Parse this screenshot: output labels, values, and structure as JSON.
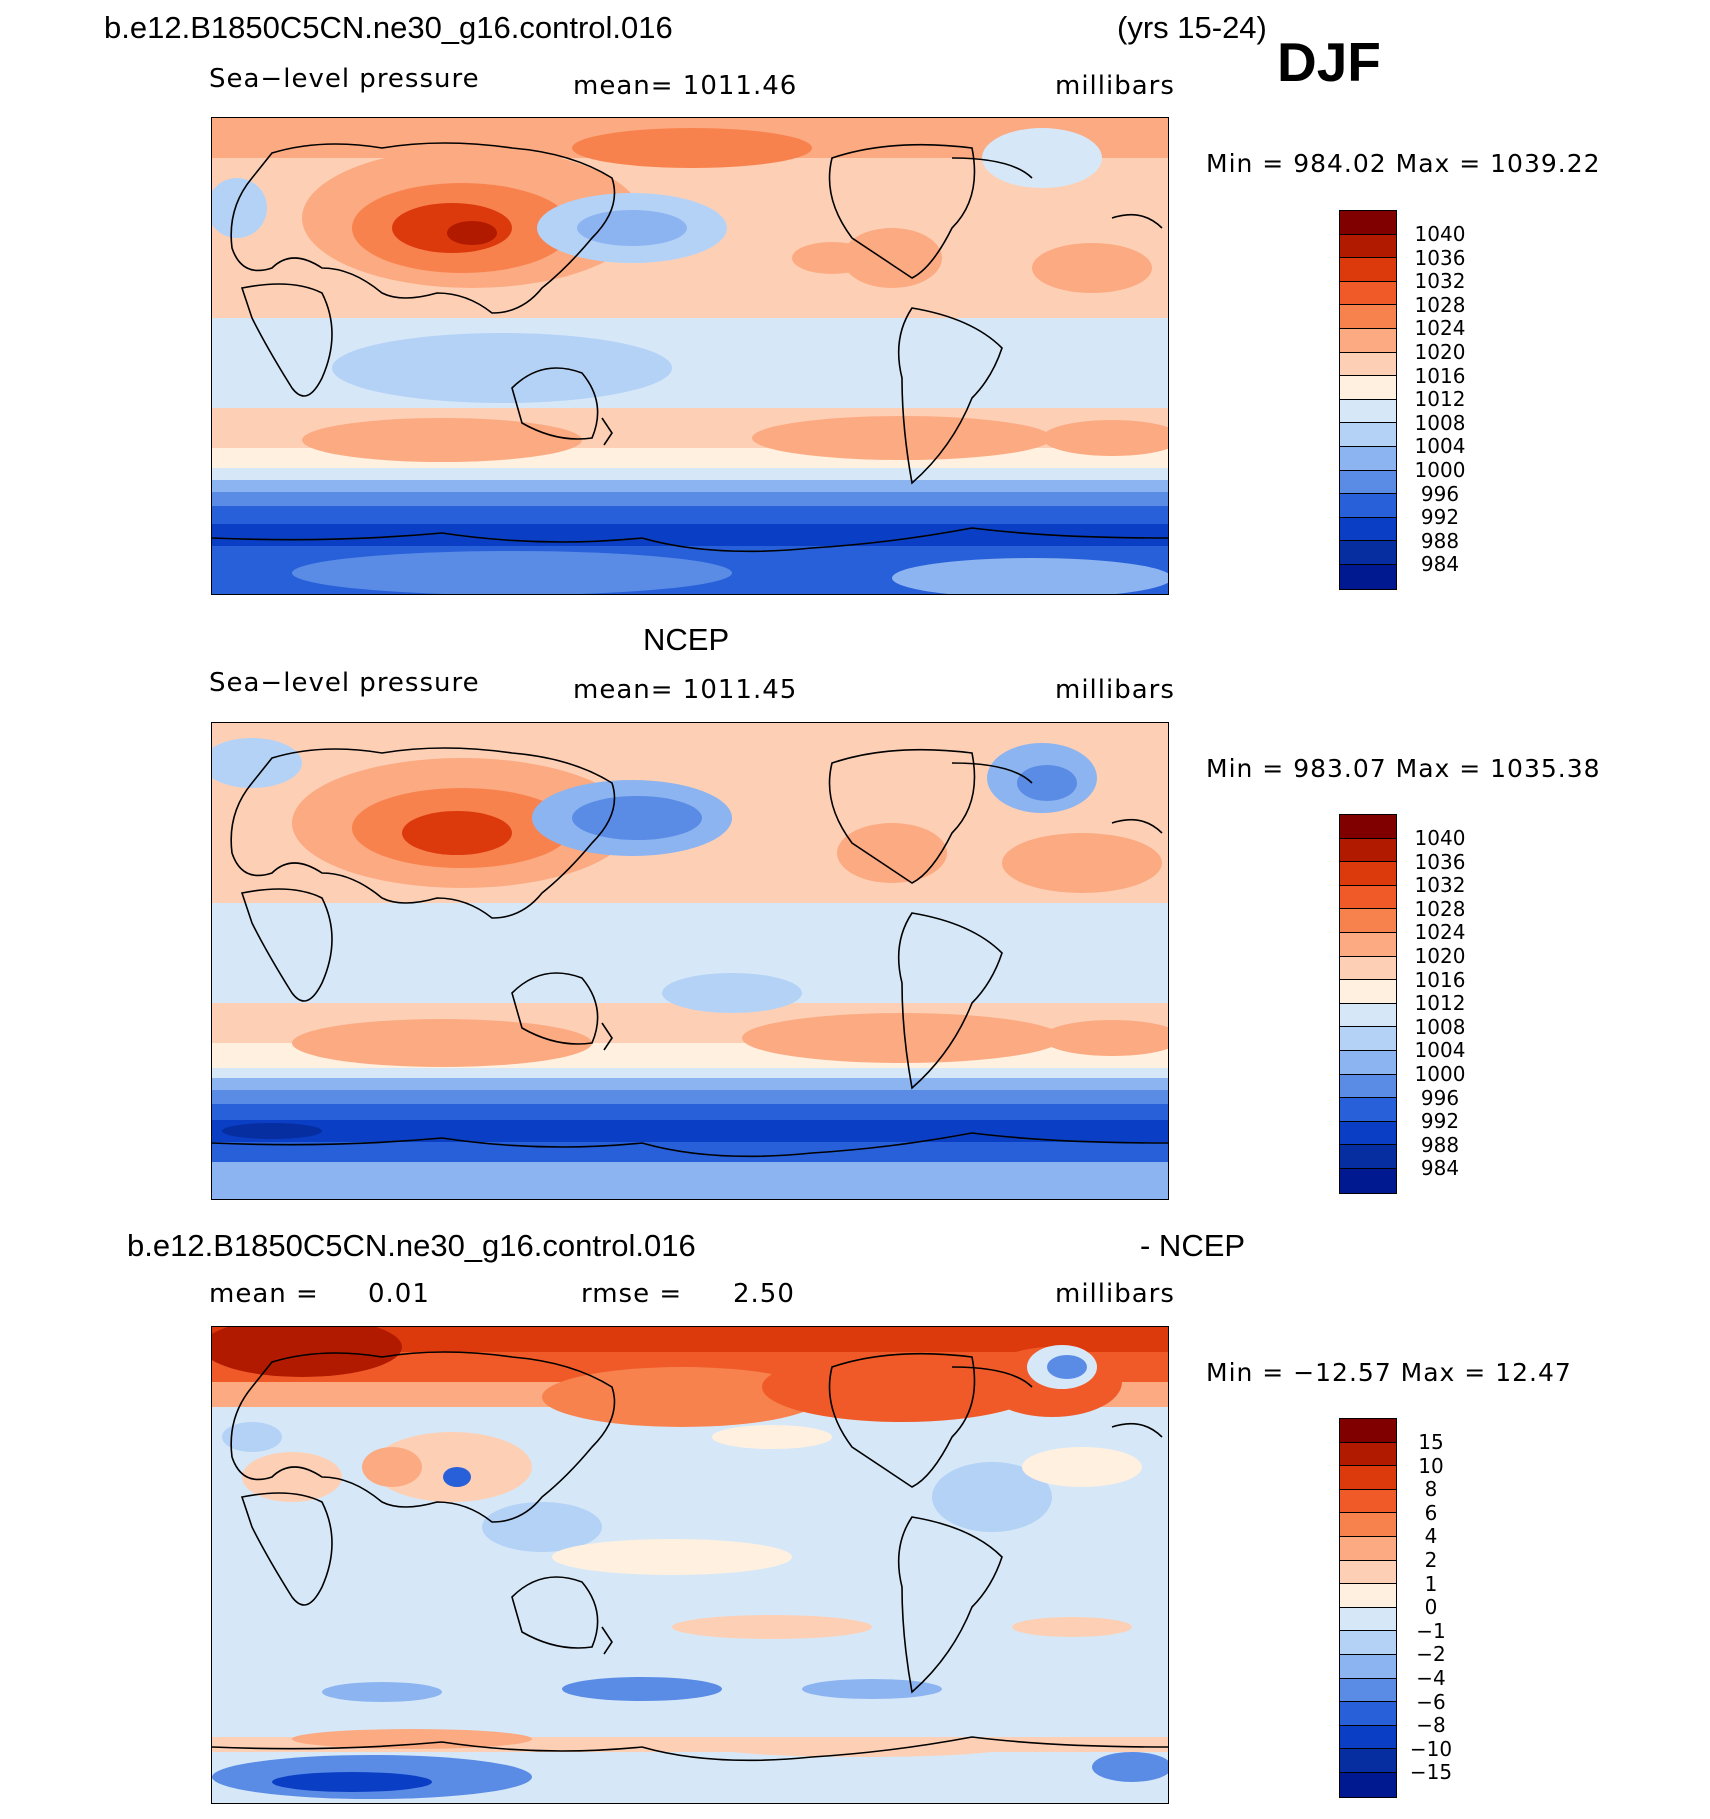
{
  "header": {
    "case_title": "b.e12.B1850C5CN.ne30_g16.control.016",
    "years": "(yrs 15-24)",
    "season": "DJF"
  },
  "panels": [
    {
      "variable": "Sea−level pressure",
      "stat": "mean=  1011.46",
      "units": "millibars",
      "minmax": "Min  =  984.02  Max  =  1039.22"
    },
    {
      "title": "NCEP",
      "variable": "Sea−level pressure",
      "stat": "mean=  1011.45",
      "units": "millibars",
      "minmax": "Min  =  983.07  Max  =  1035.38"
    },
    {
      "title_left": "b.e12.B1850C5CN.ne30_g16.control.016",
      "title_right": "- NCEP",
      "mean_label": "mean  =",
      "mean_value": "0.01",
      "rmse_label": "rmse  =",
      "rmse_value": "2.50",
      "units": "millibars",
      "minmax": "Min  =  −12.57  Max  =    12.47"
    }
  ],
  "colorbar_slp": {
    "labels": [
      "1040",
      "1036",
      "1032",
      "1028",
      "1024",
      "1020",
      "1016",
      "1012",
      "1008",
      "1004",
      "1000",
      "996",
      "992",
      "988",
      "984"
    ]
  },
  "colorbar_diff": {
    "labels": [
      "15",
      "10",
      "8",
      "6",
      "4",
      "2",
      "1",
      "0",
      "−1",
      "−2",
      "−4",
      "−6",
      "−8",
      "−10",
      "−15"
    ]
  },
  "colors": {
    "scale": [
      "#800000",
      "#b21a00",
      "#dc3a0d",
      "#f05a28",
      "#f8824e",
      "#fcaa82",
      "#fdd0b6",
      "#fff0df",
      "#d6e8f8",
      "#b4d2f6",
      "#8cb4f0",
      "#5a8ce6",
      "#2860da",
      "#0a3ec4",
      "#062ea0",
      "#001890"
    ]
  }
}
